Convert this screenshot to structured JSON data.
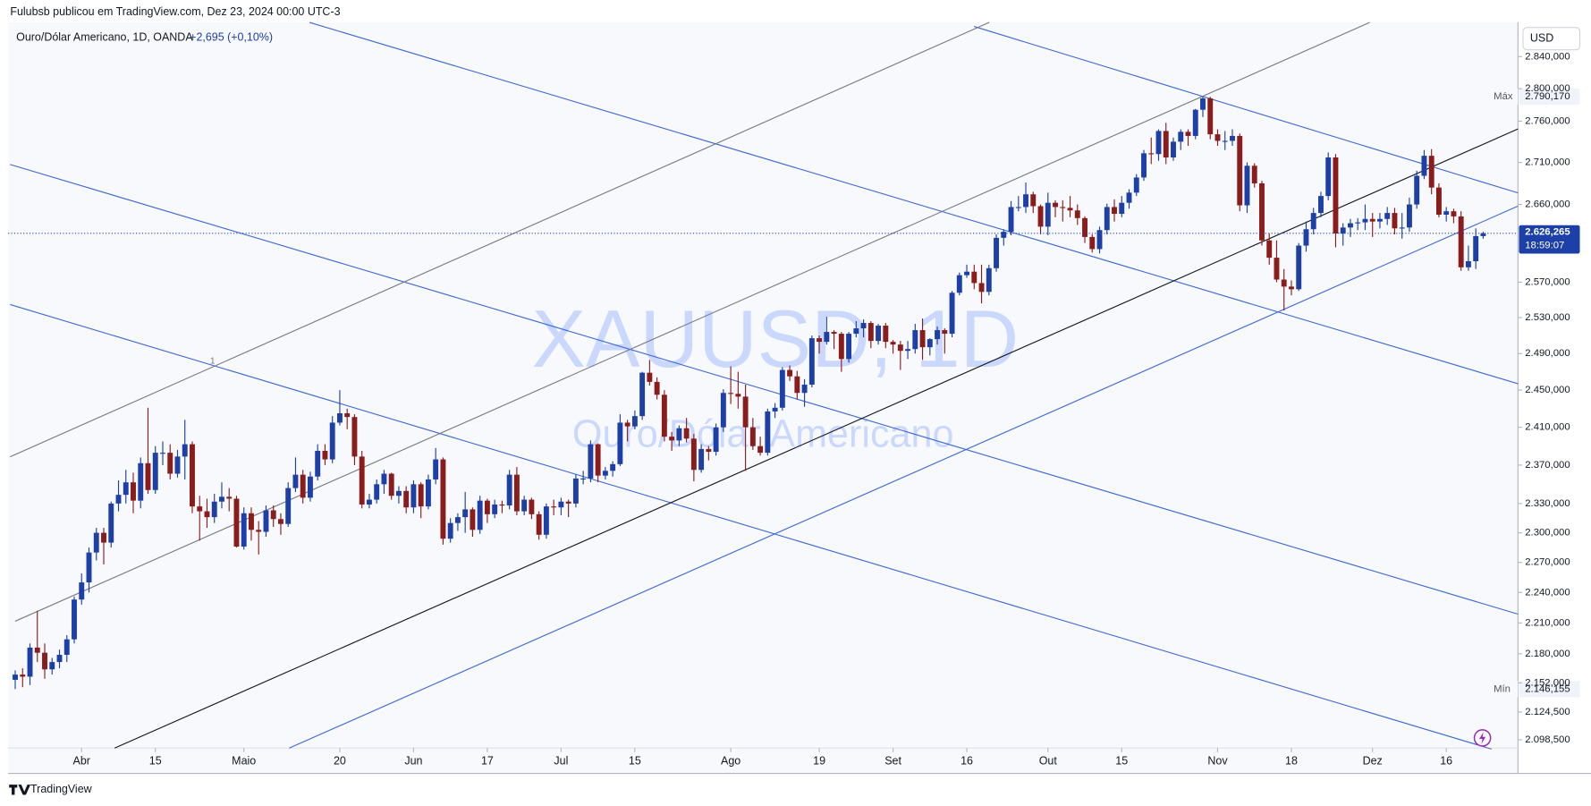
{
  "header": {
    "text": "Fulubsb publicou em TradingView.com, Dez 23, 2024 00:00 UTC-3"
  },
  "legend": {
    "symbol": "Ouro/Dólar Americano, 1D, OANDA",
    "change": "+2,695 (+0,10%)"
  },
  "watermark": {
    "ticker": "XAUUSD, 1D",
    "name": "Ouro/Dólar Americano"
  },
  "footer": {
    "brand": "TradingView"
  },
  "drawing_label": "1",
  "chart_data": {
    "type": "candlestick",
    "currency": "USD",
    "log_scale": true,
    "grid": false,
    "up_color": "#1c3fa8",
    "down_color": "#8a1c1c",
    "ylim": [
      2088,
      2886
    ],
    "yticks": [
      {
        "value": 2098.5,
        "label": "2.098,500"
      },
      {
        "value": 2124.5,
        "label": "2.124,500"
      },
      {
        "value": 2152,
        "label": "2.152,000"
      },
      {
        "value": 2180,
        "label": "2.180,000"
      },
      {
        "value": 2210,
        "label": "2.210,000"
      },
      {
        "value": 2240,
        "label": "2.240,000"
      },
      {
        "value": 2270,
        "label": "2.270,000"
      },
      {
        "value": 2300,
        "label": "2.300,000"
      },
      {
        "value": 2330,
        "label": "2.330,000"
      },
      {
        "value": 2370,
        "label": "2.370,000"
      },
      {
        "value": 2410,
        "label": "2.410,000"
      },
      {
        "value": 2450,
        "label": "2.450,000"
      },
      {
        "value": 2490,
        "label": "2.490,000"
      },
      {
        "value": 2530,
        "label": "2.530,000"
      },
      {
        "value": 2570,
        "label": "2.570,000"
      },
      {
        "value": 2660,
        "label": "2.660,000"
      },
      {
        "value": 2710,
        "label": "2.710,000"
      },
      {
        "value": 2760,
        "label": "2.760,000"
      },
      {
        "value": 2800,
        "label": "2.800,000"
      },
      {
        "value": 2840,
        "label": "2.840,000"
      }
    ],
    "xticks": [
      {
        "value": 9,
        "label": "Abr"
      },
      {
        "value": 19,
        "label": "15"
      },
      {
        "value": 31,
        "label": "Maio"
      },
      {
        "value": 44,
        "label": "20"
      },
      {
        "value": 54,
        "label": "Jun"
      },
      {
        "value": 64,
        "label": "17"
      },
      {
        "value": 74,
        "label": "Jul"
      },
      {
        "value": 84,
        "label": "15"
      },
      {
        "value": 97,
        "label": "Ago"
      },
      {
        "value": 109,
        "label": "19"
      },
      {
        "value": 119,
        "label": "Set"
      },
      {
        "value": 129,
        "label": "16"
      },
      {
        "value": 140,
        "label": "Out"
      },
      {
        "value": 150,
        "label": "15"
      },
      {
        "value": 163,
        "label": "Nov"
      },
      {
        "value": 173,
        "label": "18"
      },
      {
        "value": 184,
        "label": "Dez"
      },
      {
        "value": 194,
        "label": "16"
      }
    ],
    "max": {
      "name": "Máx",
      "value": 2790.17,
      "label": "2.790,170"
    },
    "min": {
      "name": "Mín",
      "value": 2146.155,
      "label": "2.146,155"
    },
    "last": {
      "value": 2626.265,
      "label": "2.626,265",
      "countdown": "18:59:07"
    },
    "ohlc": [
      [
        2155,
        2164,
        2146.155,
        2160
      ],
      [
        2160,
        2166,
        2148,
        2158
      ],
      [
        2158,
        2190,
        2150,
        2186
      ],
      [
        2186,
        2222,
        2172,
        2181
      ],
      [
        2181,
        2190,
        2156,
        2165
      ],
      [
        2165,
        2176,
        2160,
        2172
      ],
      [
        2172,
        2184,
        2166,
        2179
      ],
      [
        2179,
        2198,
        2172,
        2194
      ],
      [
        2194,
        2236,
        2190,
        2233
      ],
      [
        2233,
        2259,
        2228,
        2250
      ],
      [
        2250,
        2285,
        2240,
        2280
      ],
      [
        2280,
        2305,
        2272,
        2300
      ],
      [
        2300,
        2305,
        2268,
        2290
      ],
      [
        2290,
        2332,
        2285,
        2330
      ],
      [
        2330,
        2354,
        2322,
        2339
      ],
      [
        2339,
        2365,
        2330,
        2352
      ],
      [
        2352,
        2362,
        2320,
        2333
      ],
      [
        2333,
        2378,
        2325,
        2372
      ],
      [
        2372,
        2431,
        2340,
        2344
      ],
      [
        2344,
        2390,
        2340,
        2383
      ],
      [
        2383,
        2395,
        2370,
        2383
      ],
      [
        2383,
        2392,
        2355,
        2361
      ],
      [
        2361,
        2386,
        2357,
        2379
      ],
      [
        2379,
        2418,
        2355,
        2392
      ],
      [
        2392,
        2395,
        2320,
        2327
      ],
      [
        2327,
        2338,
        2292,
        2322
      ],
      [
        2322,
        2335,
        2305,
        2316
      ],
      [
        2316,
        2340,
        2310,
        2332
      ],
      [
        2332,
        2352,
        2325,
        2337
      ],
      [
        2337,
        2346,
        2322,
        2335
      ],
      [
        2335,
        2338,
        2285,
        2286
      ],
      [
        2286,
        2326,
        2283,
        2320
      ],
      [
        2320,
        2326,
        2292,
        2303
      ],
      [
        2303,
        2312,
        2278,
        2301
      ],
      [
        2301,
        2328,
        2296,
        2323
      ],
      [
        2323,
        2328,
        2306,
        2314
      ],
      [
        2314,
        2320,
        2298,
        2309
      ],
      [
        2309,
        2352,
        2306,
        2346
      ],
      [
        2346,
        2378,
        2342,
        2360
      ],
      [
        2360,
        2365,
        2330,
        2336
      ],
      [
        2336,
        2363,
        2332,
        2358
      ],
      [
        2358,
        2392,
        2354,
        2385
      ],
      [
        2385,
        2392,
        2370,
        2376
      ],
      [
        2376,
        2422,
        2372,
        2415
      ],
      [
        2415,
        2450,
        2412,
        2425
      ],
      [
        2425,
        2430,
        2408,
        2421
      ],
      [
        2421,
        2424,
        2370,
        2379
      ],
      [
        2379,
        2385,
        2325,
        2329
      ],
      [
        2329,
        2340,
        2325,
        2334
      ],
      [
        2334,
        2355,
        2330,
        2350
      ],
      [
        2350,
        2365,
        2340,
        2361
      ],
      [
        2361,
        2362,
        2334,
        2338
      ],
      [
        2338,
        2348,
        2330,
        2343
      ],
      [
        2343,
        2348,
        2320,
        2326
      ],
      [
        2326,
        2354,
        2320,
        2350
      ],
      [
        2350,
        2352,
        2315,
        2327
      ],
      [
        2327,
        2360,
        2324,
        2355
      ],
      [
        2355,
        2388,
        2350,
        2376
      ],
      [
        2376,
        2378,
        2288,
        2294
      ],
      [
        2294,
        2315,
        2290,
        2310
      ],
      [
        2310,
        2320,
        2302,
        2316
      ],
      [
        2316,
        2342,
        2300,
        2324
      ],
      [
        2324,
        2326,
        2296,
        2303
      ],
      [
        2303,
        2338,
        2299,
        2333
      ],
      [
        2333,
        2335,
        2310,
        2319
      ],
      [
        2319,
        2334,
        2315,
        2329
      ],
      [
        2329,
        2333,
        2320,
        2328
      ],
      [
        2328,
        2365,
        2324,
        2360
      ],
      [
        2360,
        2368,
        2318,
        2322
      ],
      [
        2322,
        2338,
        2318,
        2334
      ],
      [
        2334,
        2336,
        2314,
        2319
      ],
      [
        2319,
        2322,
        2293,
        2298
      ],
      [
        2298,
        2330,
        2294,
        2327
      ],
      [
        2327,
        2334,
        2318,
        2326
      ],
      [
        2326,
        2336,
        2318,
        2332
      ],
      [
        2332,
        2334,
        2316,
        2330
      ],
      [
        2330,
        2360,
        2326,
        2356
      ],
      [
        2356,
        2364,
        2350,
        2356
      ],
      [
        2356,
        2396,
        2352,
        2392
      ],
      [
        2392,
        2393,
        2352,
        2359
      ],
      [
        2359,
        2368,
        2355,
        2364
      ],
      [
        2364,
        2374,
        2358,
        2371
      ],
      [
        2371,
        2424,
        2369,
        2415
      ],
      [
        2415,
        2418,
        2395,
        2411
      ],
      [
        2411,
        2428,
        2408,
        2422
      ],
      [
        2422,
        2470,
        2418,
        2469
      ],
      [
        2469,
        2483,
        2455,
        2459
      ],
      [
        2459,
        2464,
        2440,
        2445
      ],
      [
        2445,
        2450,
        2395,
        2400
      ],
      [
        2400,
        2405,
        2385,
        2396
      ],
      [
        2396,
        2412,
        2390,
        2409
      ],
      [
        2409,
        2420,
        2394,
        2398
      ],
      [
        2398,
        2403,
        2353,
        2365
      ],
      [
        2365,
        2392,
        2362,
        2387
      ],
      [
        2387,
        2390,
        2375,
        2384
      ],
      [
        2384,
        2414,
        2380,
        2410
      ],
      [
        2410,
        2451,
        2405,
        2447
      ],
      [
        2447,
        2476,
        2435,
        2446
      ],
      [
        2446,
        2470,
        2430,
        2443
      ],
      [
        2443,
        2456,
        2364,
        2410
      ],
      [
        2410,
        2420,
        2386,
        2390
      ],
      [
        2390,
        2400,
        2380,
        2383
      ],
      [
        2383,
        2430,
        2380,
        2427
      ],
      [
        2427,
        2436,
        2420,
        2431
      ],
      [
        2431,
        2475,
        2428,
        2472
      ],
      [
        2472,
        2477,
        2460,
        2465
      ],
      [
        2465,
        2471,
        2440,
        2447
      ],
      [
        2447,
        2462,
        2432,
        2456
      ],
      [
        2456,
        2510,
        2453,
        2507
      ],
      [
        2507,
        2510,
        2490,
        2503
      ],
      [
        2503,
        2531,
        2500,
        2514
      ],
      [
        2514,
        2516,
        2495,
        2512
      ],
      [
        2512,
        2514,
        2470,
        2484
      ],
      [
        2484,
        2514,
        2480,
        2512
      ],
      [
        2512,
        2526,
        2508,
        2518
      ],
      [
        2518,
        2528,
        2508,
        2524
      ],
      [
        2524,
        2526,
        2496,
        2504
      ],
      [
        2504,
        2523,
        2500,
        2521
      ],
      [
        2521,
        2524,
        2496,
        2503
      ],
      [
        2503,
        2505,
        2490,
        2500
      ],
      [
        2500,
        2504,
        2472,
        2493
      ],
      [
        2493,
        2504,
        2484,
        2495
      ],
      [
        2495,
        2523,
        2490,
        2516
      ],
      [
        2516,
        2529,
        2483,
        2497
      ],
      [
        2497,
        2507,
        2488,
        2506
      ],
      [
        2506,
        2520,
        2500,
        2516
      ],
      [
        2516,
        2518,
        2490,
        2512
      ],
      [
        2512,
        2560,
        2508,
        2558
      ],
      [
        2558,
        2581,
        2555,
        2578
      ],
      [
        2578,
        2590,
        2575,
        2582
      ],
      [
        2582,
        2590,
        2562,
        2569
      ],
      [
        2569,
        2590,
        2546,
        2559
      ],
      [
        2559,
        2590,
        2555,
        2586
      ],
      [
        2586,
        2625,
        2582,
        2621
      ],
      [
        2621,
        2631,
        2612,
        2628
      ],
      [
        2628,
        2664,
        2624,
        2657
      ],
      [
        2657,
        2670,
        2652,
        2657
      ],
      [
        2657,
        2686,
        2650,
        2672
      ],
      [
        2672,
        2675,
        2650,
        2658
      ],
      [
        2658,
        2660,
        2625,
        2634
      ],
      [
        2634,
        2674,
        2624,
        2662
      ],
      [
        2662,
        2665,
        2645,
        2657
      ],
      [
        2657,
        2665,
        2640,
        2656
      ],
      [
        2656,
        2670,
        2645,
        2653
      ],
      [
        2653,
        2660,
        2636,
        2644
      ],
      [
        2644,
        2646,
        2615,
        2622
      ],
      [
        2622,
        2625,
        2604,
        2608
      ],
      [
        2608,
        2634,
        2603,
        2630
      ],
      [
        2630,
        2661,
        2625,
        2657
      ],
      [
        2657,
        2666,
        2640,
        2649
      ],
      [
        2649,
        2670,
        2645,
        2662
      ],
      [
        2662,
        2678,
        2655,
        2674
      ],
      [
        2674,
        2696,
        2670,
        2692
      ],
      [
        2692,
        2725,
        2688,
        2721
      ],
      [
        2721,
        2740,
        2708,
        2720
      ],
      [
        2720,
        2750,
        2712,
        2748
      ],
      [
        2748,
        2758,
        2708,
        2716
      ],
      [
        2716,
        2740,
        2712,
        2735
      ],
      [
        2735,
        2750,
        2725,
        2747
      ],
      [
        2747,
        2750,
        2730,
        2742
      ],
      [
        2742,
        2775,
        2738,
        2774
      ],
      [
        2774,
        2790.17,
        2765,
        2788
      ],
      [
        2788,
        2790,
        2738,
        2744
      ],
      [
        2744,
        2750,
        2730,
        2736
      ],
      [
        2736,
        2748,
        2725,
        2736
      ],
      [
        2736,
        2750,
        2730,
        2742
      ],
      [
        2742,
        2745,
        2652,
        2659
      ],
      [
        2659,
        2710,
        2650,
        2706
      ],
      [
        2706,
        2709,
        2680,
        2685
      ],
      [
        2685,
        2688,
        2612,
        2618
      ],
      [
        2618,
        2626,
        2590,
        2598
      ],
      [
        2598,
        2618,
        2570,
        2573
      ],
      [
        2573,
        2585,
        2538,
        2565
      ],
      [
        2565,
        2572,
        2555,
        2562
      ],
      [
        2562,
        2615,
        2560,
        2612
      ],
      [
        2612,
        2640,
        2605,
        2631
      ],
      [
        2631,
        2656,
        2625,
        2650
      ],
      [
        2650,
        2675,
        2645,
        2670
      ],
      [
        2670,
        2722,
        2665,
        2716
      ],
      [
        2716,
        2720,
        2610,
        2626
      ],
      [
        2626,
        2638,
        2612,
        2633
      ],
      [
        2633,
        2643,
        2622,
        2638
      ],
      [
        2638,
        2644,
        2630,
        2639
      ],
      [
        2639,
        2660,
        2630,
        2643
      ],
      [
        2643,
        2650,
        2622,
        2640
      ],
      [
        2640,
        2650,
        2632,
        2643
      ],
      [
        2643,
        2657,
        2636,
        2650
      ],
      [
        2650,
        2656,
        2625,
        2632
      ],
      [
        2632,
        2650,
        2620,
        2633
      ],
      [
        2633,
        2668,
        2628,
        2660
      ],
      [
        2660,
        2700,
        2655,
        2694
      ],
      [
        2694,
        2725,
        2690,
        2718
      ],
      [
        2718,
        2726,
        2672,
        2680
      ],
      [
        2680,
        2685,
        2645,
        2648
      ],
      [
        2648,
        2657,
        2640,
        2652
      ],
      [
        2652,
        2655,
        2638,
        2646
      ],
      [
        2646,
        2652,
        2583,
        2587
      ],
      [
        2587,
        2612,
        2583,
        2594
      ],
      [
        2594,
        2632,
        2585,
        2623
      ],
      [
        2623,
        2628,
        2620,
        2626
      ]
    ]
  }
}
